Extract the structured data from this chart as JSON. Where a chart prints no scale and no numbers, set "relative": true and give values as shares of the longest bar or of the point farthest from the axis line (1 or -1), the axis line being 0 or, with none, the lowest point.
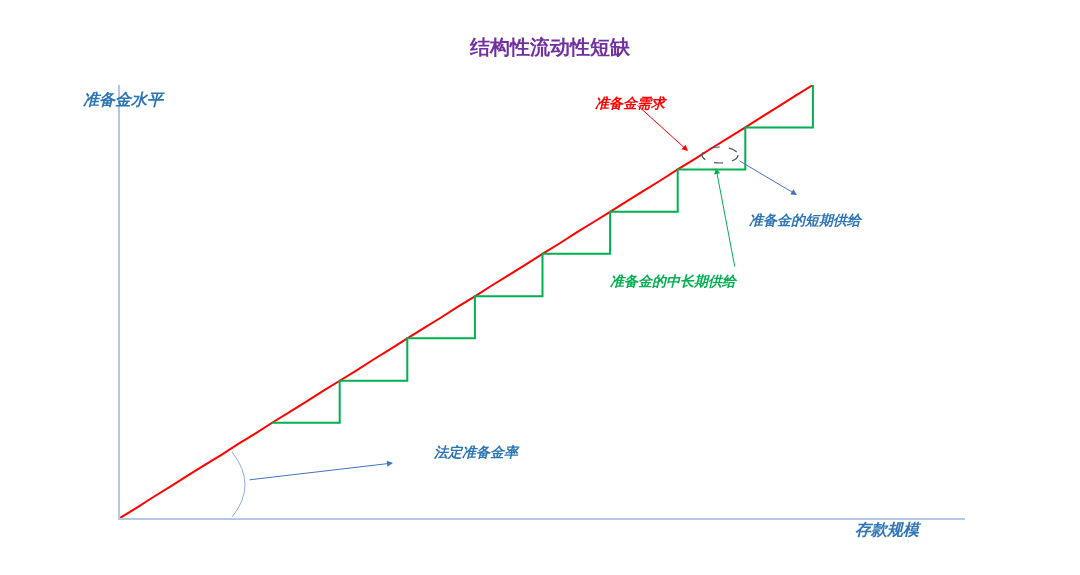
{
  "chart_data": {
    "type": "line",
    "title": "结构性流动性短缺",
    "xlabel": "存款规模",
    "ylabel": "准备金水平",
    "relative": true,
    "tick_labels": false,
    "grid": false,
    "categories": [
      null,
      null,
      null,
      null,
      null,
      null,
      null,
      null,
      null,
      null,
      null,
      null,
      null,
      null,
      null,
      null,
      null,
      null,
      null,
      null,
      null,
      null,
      null,
      null,
      null,
      null,
      null,
      null,
      null,
      null,
      null,
      null,
      null,
      null,
      null,
      null,
      null,
      null,
      null,
      null,
      null,
      null,
      null,
      null,
      null,
      null,
      null,
      null,
      null,
      null,
      null
    ],
    "series": [
      {
        "color": "#ff0000",
        "values": [
          0,
          0.024,
          0.049,
          0.073,
          0.098,
          0.122,
          0.146,
          0.171,
          0.195,
          0.22,
          0.244,
          0.268,
          0.293,
          0.317,
          0.341,
          0.366,
          0.39,
          0.415,
          0.439,
          0.463,
          0.488,
          0.512,
          0.537,
          0.561,
          0.585,
          0.61,
          0.634,
          0.659,
          0.683,
          0.707,
          0.732,
          0.756,
          0.78,
          0.805,
          0.829,
          0.854,
          0.878,
          0.902,
          0.927,
          0.951,
          0.976,
          1,
          null,
          null,
          null,
          null,
          null,
          null,
          null,
          null,
          null
        ]
      },
      {
        "type": "step",
        "color": "#00b050",
        "values": [
          null,
          null,
          null,
          null,
          null,
          null,
          null,
          null,
          null,
          0.22,
          0.22,
          0.22,
          0.22,
          0.317,
          0.317,
          0.317,
          0.317,
          0.415,
          0.415,
          0.415,
          0.415,
          0.512,
          0.512,
          0.512,
          0.512,
          0.61,
          0.61,
          0.61,
          0.61,
          0.707,
          0.707,
          0.707,
          0.707,
          0.805,
          0.805,
          0.805,
          0.805,
          0.902,
          0.902,
          0.902,
          0.902,
          1,
          null,
          null,
          null,
          null,
          null,
          null,
          null,
          null,
          null
        ]
      }
    ],
    "annotations": [
      "准备金需求",
      "准备金的短期供给",
      "准备金的中长期供给",
      "法定准备金率"
    ]
  }
}
